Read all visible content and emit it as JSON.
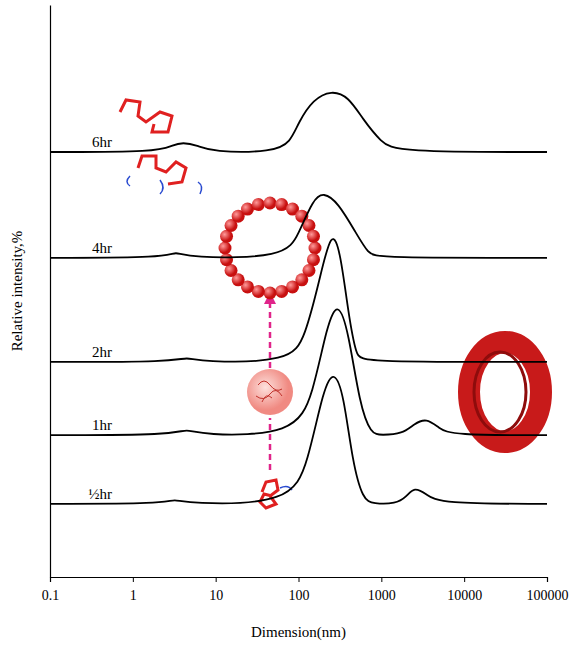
{
  "chart_data": {
    "type": "line",
    "x_label": "Dimension(nm)",
    "y_label": "Relative intensity,%",
    "log": "x",
    "tick_labels": "x",
    "xlim": [
      0.1,
      100000
    ],
    "xticks": [
      0.1,
      1,
      10,
      100,
      1000,
      10000,
      100000
    ],
    "ylim": [
      0,
      100
    ],
    "series": [
      {
        "name": "6hr",
        "color": "#000000",
        "x": [
          0.1,
          2,
          3,
          4,
          6,
          9,
          50,
          80,
          100,
          150,
          250,
          400,
          600,
          1000,
          1500,
          100000
        ],
        "values": [
          74.3,
          74.3,
          75.5,
          76,
          75.5,
          74.3,
          74.3,
          76,
          79.5,
          83.5,
          85.1,
          84,
          80,
          76,
          74.3,
          74.3
        ]
      },
      {
        "name": "4hr",
        "color": "#000000",
        "x": [
          0.1,
          2.5,
          3.3,
          4.5,
          70,
          100,
          150,
          200,
          300,
          500,
          700,
          900,
          100000
        ],
        "values": [
          55.8,
          55.8,
          57,
          55.8,
          55.8,
          60,
          66,
          67.3,
          65.5,
          60,
          56.5,
          55.8,
          55.8
        ]
      },
      {
        "name": "2hr",
        "color": "#000000",
        "x": [
          0.1,
          3,
          4.5,
          6.5,
          80,
          120,
          180,
          250,
          320,
          400,
          500,
          600,
          100000
        ],
        "values": [
          37.6,
          37.6,
          38.5,
          37.6,
          37.6,
          42,
          52,
          61,
          57,
          46,
          38.5,
          37.6,
          37.6
        ]
      },
      {
        "name": "1hr",
        "color": "#000000",
        "x": [
          0.1,
          3,
          4.5,
          6.5,
          90,
          150,
          220,
          300,
          400,
          550,
          750,
          1000,
          1800,
          2500,
          3500,
          5000,
          7000,
          100000
        ],
        "values": [
          24.8,
          24.8,
          26,
          24.8,
          24.8,
          32,
          44,
          48.4,
          43,
          30,
          25,
          24.8,
          25,
          26.8,
          27.8,
          26,
          24.8,
          24.8
        ]
      },
      {
        "name": "½hr",
        "color": "#000000",
        "x": [
          0.1,
          2.3,
          3.2,
          4.5,
          80,
          130,
          200,
          270,
          350,
          450,
          600,
          800,
          1500,
          2000,
          2500,
          3500,
          5000,
          100000
        ],
        "values": [
          12.8,
          12.8,
          13.7,
          12.8,
          12.8,
          20,
          33,
          36.2,
          32,
          20,
          13.5,
          12.8,
          12.8,
          14,
          15.8,
          14.5,
          12.8,
          12.8
        ]
      }
    ]
  }
}
